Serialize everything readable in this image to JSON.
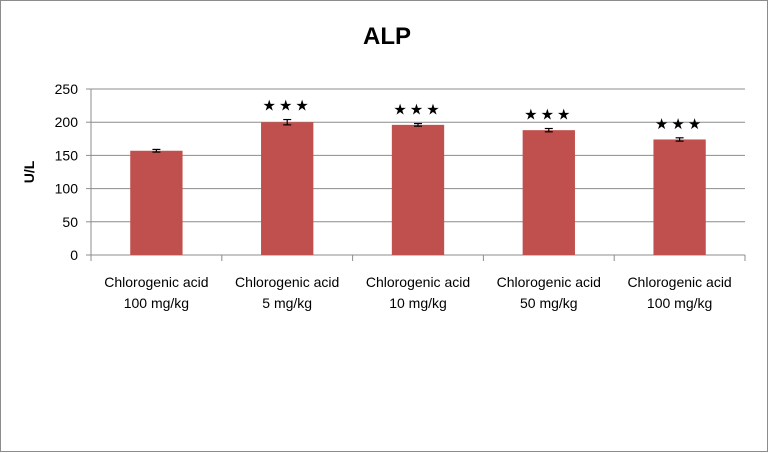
{
  "chart_data": {
    "type": "bar",
    "title": "ALP",
    "xlabel": "",
    "ylabel": "U/L",
    "ylim": [
      0,
      250
    ],
    "yticks": [
      0,
      50,
      100,
      150,
      200,
      250
    ],
    "grid": true,
    "categories": [
      [
        "Chlorogenic acid",
        "100 mg/kg"
      ],
      [
        "Chlorogenic acid",
        "5 mg/kg"
      ],
      [
        "Chlorogenic acid",
        "10 mg/kg"
      ],
      [
        "Chlorogenic acid",
        "50 mg/kg"
      ],
      [
        "Chlorogenic acid",
        "100 mg/kg"
      ]
    ],
    "values": [
      157,
      200,
      196,
      188,
      174
    ],
    "errors": [
      2,
      4,
      2,
      2.5,
      2.5
    ],
    "annotations": [
      "",
      "★★★",
      "★★★",
      "★★★",
      "★★★"
    ],
    "bar_color": "#c0504d",
    "grid_color": "#8c8c8c"
  }
}
